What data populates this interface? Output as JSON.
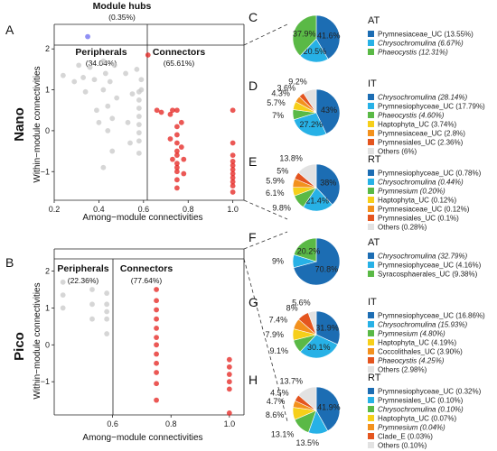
{
  "chart_data": [
    {
      "type": "scatter",
      "panel": "A",
      "row_label": "Nano",
      "xlabel": "Among−module connectivities",
      "ylabel": "Within−module connectivities",
      "xlim": [
        0.2,
        1.05
      ],
      "ylim": [
        -1.7,
        2.6
      ],
      "x_ticks": [
        "0.2",
        "0.4",
        "0.6",
        "0.8",
        "1.0"
      ],
      "y_ticks": [
        "−1",
        "0",
        "1",
        "2"
      ],
      "x_tick_values": [
        0.2,
        0.4,
        0.6,
        0.8,
        1.0
      ],
      "y_tick_values": [
        -1,
        0,
        1,
        2
      ],
      "regions": {
        "module_hubs": {
          "title": "Module hubs",
          "pct": "(0.35%)"
        },
        "peripherals": {
          "title": "Peripherals",
          "pct": "(34.04%)"
        },
        "connectors": {
          "title": "Connectors",
          "pct": "(65.61%)"
        }
      },
      "series": [
        {
          "name": "Module hubs",
          "color": "#6b6bf0",
          "points": [
            [
              0.35,
              2.3
            ]
          ]
        },
        {
          "name": "Peripherals",
          "color": "#c8c8c8",
          "points": [
            [
              0.24,
              1.35
            ],
            [
              0.29,
              1.2
            ],
            [
              0.31,
              1.6
            ],
            [
              0.33,
              1.3
            ],
            [
              0.34,
              0.95
            ],
            [
              0.36,
              1.55
            ],
            [
              0.38,
              1.25
            ],
            [
              0.39,
              0.5
            ],
            [
              0.4,
              0.2
            ],
            [
              0.42,
              1.7
            ],
            [
              0.42,
              1.0
            ],
            [
              0.43,
              1.4
            ],
            [
              0.44,
              0.6
            ],
            [
              0.44,
              0.0
            ],
            [
              0.45,
              1.2
            ],
            [
              0.46,
              0.3
            ],
            [
              0.46,
              -0.5
            ],
            [
              0.47,
              1.6
            ],
            [
              0.48,
              0.8
            ],
            [
              0.52,
              1.4
            ],
            [
              0.53,
              0.2
            ],
            [
              0.54,
              -0.3
            ],
            [
              0.55,
              0.9
            ],
            [
              0.57,
              1.5
            ],
            [
              0.58,
              0.95
            ],
            [
              0.58,
              0.75
            ],
            [
              0.58,
              0.55
            ],
            [
              0.58,
              0.35
            ],
            [
              0.58,
              0.15
            ],
            [
              0.58,
              -0.05
            ],
            [
              0.58,
              -0.25
            ],
            [
              0.58,
              -0.55
            ],
            [
              0.59,
              1.25
            ],
            [
              0.59,
              1.0
            ],
            [
              0.42,
              -0.9
            ]
          ]
        },
        {
          "name": "Connectors",
          "color": "#e4201c",
          "points": [
            [
              0.62,
              1.85
            ],
            [
              0.66,
              0.5
            ],
            [
              0.68,
              0.45
            ],
            [
              0.72,
              0.4
            ],
            [
              0.72,
              -0.2
            ],
            [
              0.73,
              0.5
            ],
            [
              0.73,
              -0.7
            ],
            [
              0.75,
              0.5
            ],
            [
              0.75,
              0.1
            ],
            [
              0.75,
              -0.1
            ],
            [
              0.75,
              -0.3
            ],
            [
              0.75,
              -0.5
            ],
            [
              0.75,
              -0.6
            ],
            [
              0.75,
              -0.8
            ],
            [
              0.75,
              -0.9
            ],
            [
              0.75,
              -1.0
            ],
            [
              0.75,
              -1.2
            ],
            [
              0.75,
              -1.4
            ],
            [
              0.77,
              0.2
            ],
            [
              0.77,
              -0.4
            ],
            [
              0.78,
              -0.7
            ],
            [
              0.78,
              -1.05
            ],
            [
              1.0,
              0.5
            ],
            [
              1.0,
              -0.3
            ],
            [
              1.0,
              -0.6
            ],
            [
              1.0,
              -0.75
            ],
            [
              1.0,
              -0.85
            ],
            [
              1.0,
              -0.95
            ],
            [
              1.0,
              -1.05
            ],
            [
              1.0,
              -1.15
            ],
            [
              1.0,
              -1.25
            ],
            [
              1.0,
              -1.35
            ],
            [
              1.0,
              -1.5
            ]
          ]
        }
      ]
    },
    {
      "type": "scatter",
      "panel": "B",
      "row_label": "Pico",
      "xlabel": "Among−module connectivities",
      "ylabel": "Within−module connectivities",
      "xlim": [
        0.4,
        1.05
      ],
      "ylim": [
        -1.9,
        2.6
      ],
      "x_ticks": [
        "0.6",
        "0.8",
        "1.0"
      ],
      "y_ticks": [
        "−1",
        "0",
        "1",
        "2"
      ],
      "x_tick_values": [
        0.6,
        0.8,
        1.0
      ],
      "y_tick_values": [
        -1,
        0,
        1,
        2
      ],
      "regions": {
        "peripherals": {
          "title": "Peripherals",
          "pct": "(22.36%)"
        },
        "connectors": {
          "title": "Connectors",
          "pct": "(77.64%)"
        }
      },
      "series": [
        {
          "name": "Peripherals",
          "color": "#c8c8c8",
          "points": [
            [
              0.43,
              1.7
            ],
            [
              0.43,
              1.35
            ],
            [
              0.43,
              1.0
            ],
            [
              0.53,
              1.5
            ],
            [
              0.53,
              1.1
            ],
            [
              0.53,
              0.7
            ],
            [
              0.58,
              1.4
            ],
            [
              0.58,
              1.1
            ],
            [
              0.58,
              0.9
            ],
            [
              0.58,
              0.7
            ],
            [
              0.58,
              0.3
            ]
          ]
        },
        {
          "name": "Connectors",
          "color": "#e4201c",
          "points": [
            [
              0.75,
              1.5
            ],
            [
              0.75,
              1.2
            ],
            [
              0.75,
              0.95
            ],
            [
              0.75,
              0.7
            ],
            [
              0.75,
              0.45
            ],
            [
              0.75,
              0.2
            ],
            [
              0.75,
              0.0
            ],
            [
              0.75,
              -0.25
            ],
            [
              0.75,
              -0.5
            ],
            [
              0.75,
              -0.75
            ],
            [
              0.75,
              -1.05
            ],
            [
              0.75,
              -1.5
            ],
            [
              1.0,
              -0.4
            ],
            [
              1.0,
              -0.6
            ],
            [
              1.0,
              -0.8
            ],
            [
              1.0,
              -1.0
            ],
            [
              1.0,
              -1.2
            ],
            [
              1.0,
              -1.85
            ]
          ]
        }
      ]
    },
    {
      "type": "pie",
      "panel": "C",
      "title": "AT",
      "slices": [
        {
          "label": "Prymnesiaceae_UC (13.55%)",
          "value": 41.6,
          "pct_label": "41.6%",
          "color": "#1c6db3"
        },
        {
          "label": "Chrysochromulina (6.67%)",
          "italic": true,
          "value": 20.5,
          "pct_label": "20.5%",
          "color": "#27b1e6"
        },
        {
          "label": "Phaeocystis (12.31%)",
          "italic": true,
          "value": 37.9,
          "pct_label": "37.9%",
          "color": "#5ab946"
        }
      ]
    },
    {
      "type": "pie",
      "panel": "D",
      "title": "IT",
      "slices": [
        {
          "label": "Chrysochromulina (28.14%)",
          "italic": true,
          "value": 43,
          "pct_label": "43%",
          "color": "#1c6db3"
        },
        {
          "label": "Prymnesiophyceae_UC (17.79%)",
          "value": 27.2,
          "pct_label": "27.2%",
          "color": "#27b1e6"
        },
        {
          "label": "Phaeocystis (4.60%)",
          "italic": true,
          "value": 7,
          "pct_label": "7%",
          "color": "#5ab946"
        },
        {
          "label": "Haptophyta_UC (3.74%)",
          "value": 5.7,
          "pct_label": "5.7%",
          "color": "#f6cf1a"
        },
        {
          "label": "Prymnesiaceae_UC (2.8%)",
          "value": 4.3,
          "pct_label": "4.3%",
          "color": "#f3911d"
        },
        {
          "label": "Prymnesiales_UC (2.36%)",
          "value": 3.6,
          "pct_label": "3.6%",
          "color": "#e4551f"
        },
        {
          "label": "Others (6%)",
          "value": 9.2,
          "pct_label": "9.2%",
          "color": "#e2e2e2"
        }
      ]
    },
    {
      "type": "pie",
      "panel": "E",
      "title": "RT",
      "slices": [
        {
          "label": "Prymnesiophyceae_UC (0.78%)",
          "value": 38,
          "pct_label": "38%",
          "color": "#1c6db3"
        },
        {
          "label": "Chrysochromulina (0.44%)",
          "italic": true,
          "value": 21.4,
          "pct_label": "21.4%",
          "color": "#27b1e6"
        },
        {
          "label": "Prymnesium (0.20%)",
          "italic": true,
          "value": 9.8,
          "pct_label": "9.8%",
          "color": "#5ab946"
        },
        {
          "label": "Haptophyta_UC (0.12%)",
          "value": 6.1,
          "pct_label": "6.1%",
          "color": "#f6cf1a"
        },
        {
          "label": "Prymnesiaceae_UC (0.12%)",
          "value": 5.9,
          "pct_label": "5.9%",
          "color": "#f3911d"
        },
        {
          "label": "Prymnesiales_UC (0.1%)",
          "value": 5,
          "pct_label": "5%",
          "color": "#e4551f"
        },
        {
          "label": "Others (0.28%)",
          "value": 13.8,
          "pct_label": "13.8%",
          "color": "#e2e2e2"
        }
      ]
    },
    {
      "type": "pie",
      "panel": "F",
      "title": "AT",
      "slices": [
        {
          "label": "Chrysochromulina (32.79%)",
          "italic": true,
          "value": 70.8,
          "pct_label": "70.8%",
          "color": "#1c6db3"
        },
        {
          "label": "Prymnesiophyceae_UC (4.16%)",
          "value": 9,
          "pct_label": "9%",
          "color": "#27b1e6"
        },
        {
          "label": "Syracosphaerales_UC (9.38%)",
          "value": 20.2,
          "pct_label": "20.2%",
          "color": "#5ab946"
        }
      ]
    },
    {
      "type": "pie",
      "panel": "G",
      "title": "IT",
      "slices": [
        {
          "label": "Prymnesiophyceae_UC (16.86%)",
          "value": 31.9,
          "pct_label": "31.9%",
          "color": "#1c6db3"
        },
        {
          "label": "Chrysochromulina (15.93%)",
          "italic": true,
          "value": 30.1,
          "pct_label": "30.1%",
          "color": "#27b1e6"
        },
        {
          "label": "Prymnesium (4.80%)",
          "italic": true,
          "value": 9.1,
          "pct_label": "9.1%",
          "color": "#5ab946"
        },
        {
          "label": "Haptophyta_UC (4.19%)",
          "value": 7.9,
          "pct_label": "7.9%",
          "color": "#f6cf1a"
        },
        {
          "label": "Coccolithales_UC (3.90%)",
          "value": 7.4,
          "pct_label": "7.4%",
          "color": "#f3911d"
        },
        {
          "label": "Phaeocystis (4.25%)",
          "italic": true,
          "value": 8,
          "pct_label": "8%",
          "color": "#e4551f"
        },
        {
          "label": "Others (2.98%)",
          "value": 5.6,
          "pct_label": "5.6%",
          "color": "#e2e2e2"
        }
      ]
    },
    {
      "type": "pie",
      "panel": "H",
      "title": "RT",
      "slices": [
        {
          "label": "Prymnesiophyceae_UC (0.32%)",
          "value": 41.9,
          "pct_label": "41.9%",
          "color": "#1c6db3"
        },
        {
          "label": "Prymnesiales_UC (0.10%)",
          "value": 13.5,
          "pct_label": "13.5%",
          "color": "#27b1e6"
        },
        {
          "label": "Chrysochromulina (0.10%)",
          "italic": true,
          "value": 13.1,
          "pct_label": "13.1%",
          "color": "#5ab946"
        },
        {
          "label": "Haptophyta_UC (0.07%)",
          "value": 8.6,
          "pct_label": "8.6%",
          "color": "#f6cf1a"
        },
        {
          "label": "Prymnesium (0.04%)",
          "italic": true,
          "value": 4.7,
          "pct_label": "4.7%",
          "color": "#f3911d"
        },
        {
          "label": "Clade_E (0.03%)",
          "value": 4.5,
          "pct_label": "4.5%",
          "color": "#e4551f"
        },
        {
          "label": "Others (0.10%)",
          "value": 13.7,
          "pct_label": "13.7%",
          "color": "#e2e2e2"
        }
      ]
    }
  ]
}
